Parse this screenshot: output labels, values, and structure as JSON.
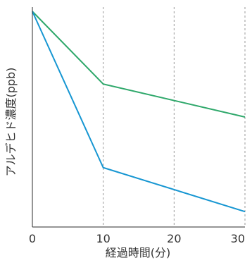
{
  "chart_data": {
    "type": "line",
    "title": "",
    "xlabel": "経過時間(分)",
    "ylabel": "アルデヒド濃度(ppb)",
    "xlim": [
      0,
      30
    ],
    "ylim": [
      0,
      1
    ],
    "x_ticks": [
      "0",
      "10",
      "20",
      "30"
    ],
    "y_ticks": [],
    "grid": {
      "x": true,
      "y": false,
      "style": "dashed"
    },
    "legend": "none",
    "x": [
      0,
      10,
      30
    ],
    "series": [
      {
        "color": "#2fa86b",
        "values": [
          0.98,
          0.65,
          0.5
        ]
      },
      {
        "color": "#1696d2",
        "values": [
          0.98,
          0.27,
          0.07
        ]
      }
    ]
  }
}
